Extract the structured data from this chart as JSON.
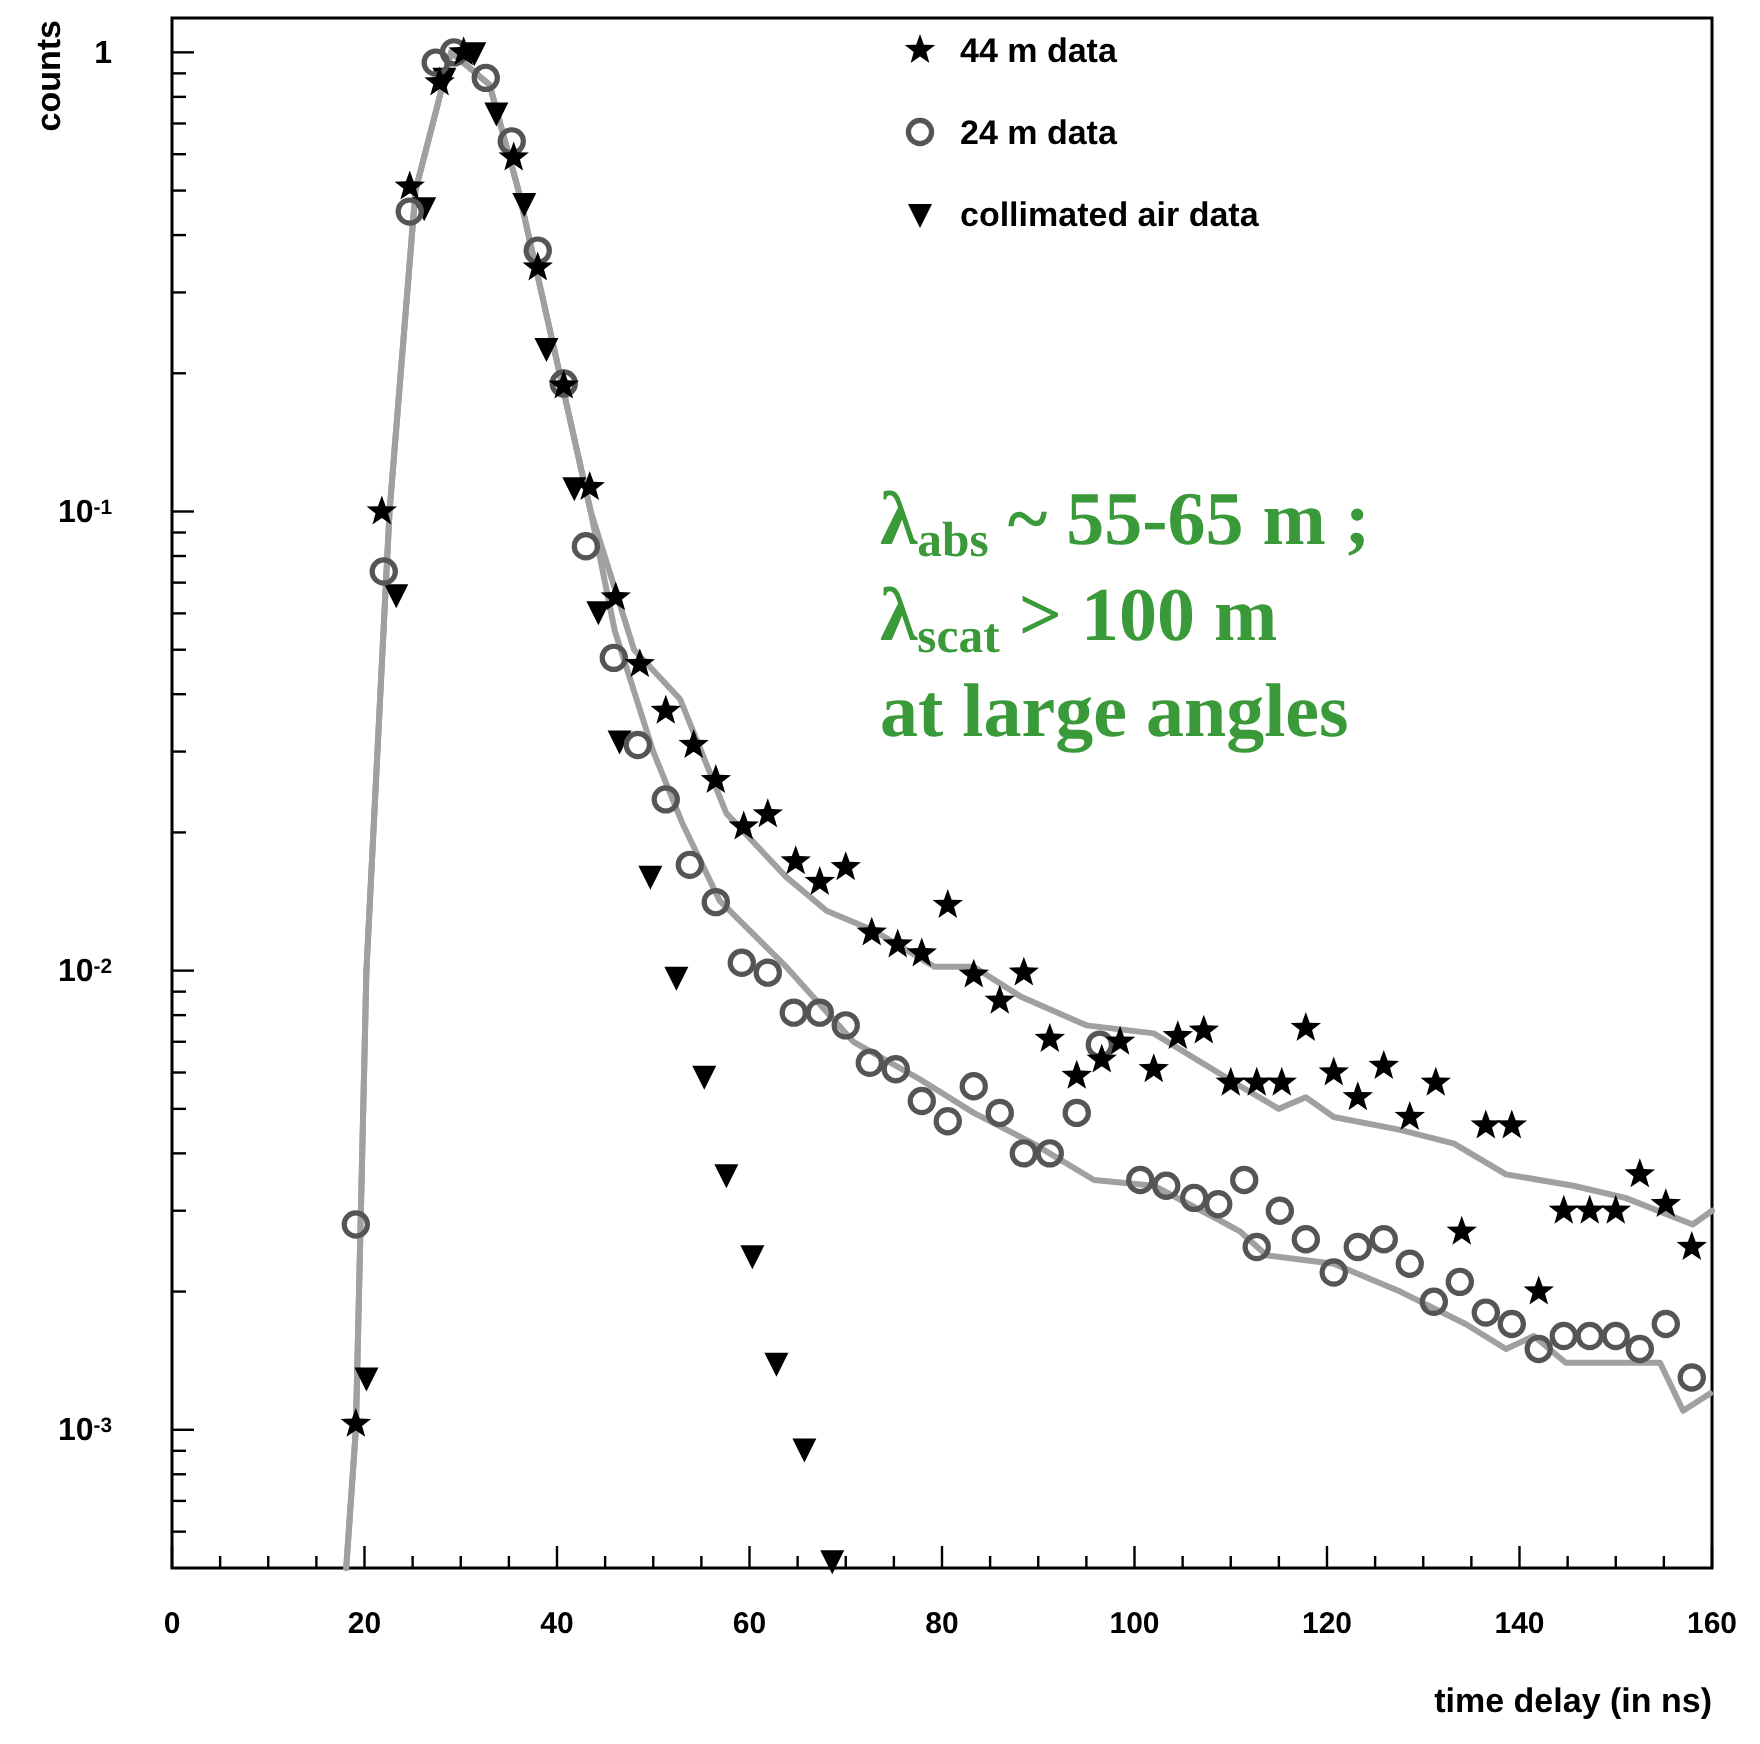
{
  "chart_data": {
    "type": "scatter",
    "xlabel": "time delay (in ns)",
    "ylabel": "counts",
    "log": "y",
    "grid": false,
    "legend": "top right",
    "xlim": [
      0,
      160
    ],
    "ylim": [
      0.0005,
      1.2
    ],
    "xticks": [
      0,
      {
        "value": 5,
        "label": null
      },
      {
        "value": 10,
        "label": null
      },
      {
        "value": 15,
        "label": null
      },
      20,
      {
        "value": 25,
        "label": null
      },
      {
        "value": 30,
        "label": null
      },
      {
        "value": 35,
        "label": null
      },
      40,
      {
        "value": 45,
        "label": null
      },
      {
        "value": 50,
        "label": null
      },
      {
        "value": 55,
        "label": null
      },
      60,
      {
        "value": 65,
        "label": null
      },
      {
        "value": 70,
        "label": null
      },
      {
        "value": 75,
        "label": null
      },
      80,
      {
        "value": 85,
        "label": null
      },
      {
        "value": 90,
        "label": null
      },
      {
        "value": 95,
        "label": null
      },
      100,
      {
        "value": 105,
        "label": null
      },
      {
        "value": 110,
        "label": null
      },
      {
        "value": 115,
        "label": null
      },
      120,
      {
        "value": 125,
        "label": null
      },
      {
        "value": 130,
        "label": null
      },
      {
        "value": 135,
        "label": null
      },
      140,
      {
        "value": 145,
        "label": null
      },
      {
        "value": 150,
        "label": null
      },
      {
        "value": 155,
        "label": null
      },
      160
    ],
    "yticks": [
      {
        "value": 0.0006,
        "label": null
      },
      {
        "value": 0.0007,
        "label": null
      },
      {
        "value": 0.0008,
        "label": null
      },
      {
        "value": 0.0009,
        "label": null
      },
      {
        "value": 0.001,
        "label": "10$^{-3}$"
      },
      {
        "value": 0.002,
        "label": null
      },
      {
        "value": 0.003,
        "label": null
      },
      {
        "value": 0.004,
        "label": null
      },
      {
        "value": 0.005,
        "label": null
      },
      {
        "value": 0.006,
        "label": null
      },
      {
        "value": 0.007,
        "label": null
      },
      {
        "value": 0.008,
        "label": null
      },
      {
        "value": 0.009,
        "label": null
      },
      {
        "value": 0.01,
        "label": "10$^{-2}$"
      },
      {
        "value": 0.02,
        "label": null
      },
      {
        "value": 0.03,
        "label": null
      },
      {
        "value": 0.04,
        "label": null
      },
      {
        "value": 0.05,
        "label": null
      },
      {
        "value": 0.06,
        "label": null
      },
      {
        "value": 0.07,
        "label": null
      },
      {
        "value": 0.08,
        "label": null
      },
      {
        "value": 0.09,
        "label": null
      },
      {
        "value": 0.1,
        "label": "10$^{-1}$"
      },
      {
        "value": 0.2,
        "label": null
      },
      {
        "value": 0.3,
        "label": null
      },
      {
        "value": 0.4,
        "label": null
      },
      {
        "value": 0.5,
        "label": null
      },
      {
        "value": 0.6,
        "label": null
      },
      {
        "value": 0.7,
        "label": null
      },
      {
        "value": 0.8,
        "label": null
      },
      {
        "value": 0.9,
        "label": null
      },
      1
    ],
    "annotations": [
      "λ$_{abs}$ ~ 55-65 m ;",
      "λ$_{scat}$ > 100 m",
      "at large angles"
    ],
    "series": [
      {
        "type": "line",
        "color": "#a0a0a0",
        "line_style": "solid",
        "marker": "none",
        "x": [
          18.1,
          19.1,
          20.2,
          22.6,
          25.3,
          29,
          33,
          36,
          43.5,
          48,
          52.8,
          57.6,
          63.8,
          68,
          73,
          79.2,
          83.3,
          88.1,
          95,
          102,
          111,
          115,
          117.8,
          120.7,
          127.6,
          133.2,
          138.6,
          145.6,
          151,
          158,
          160
        ],
        "values": [
          0.0005,
          0.001,
          0.01,
          0.1,
          0.5,
          1.0,
          0.85,
          0.5,
          0.1,
          0.05,
          0.039,
          0.022,
          0.016,
          0.0135,
          0.0122,
          0.0102,
          0.0102,
          0.0088,
          0.0076,
          0.0073,
          0.0056,
          0.005,
          0.0053,
          0.0048,
          0.0045,
          0.0042,
          0.0036,
          0.0034,
          0.0032,
          0.0028,
          0.003
        ]
      },
      {
        "type": "line",
        "color": "#a0a0a0",
        "line_style": "solid",
        "marker": "none",
        "x": [
          18.1,
          19.1,
          20.2,
          22.6,
          25.3,
          29,
          33,
          36,
          43.5,
          46,
          50,
          53,
          56.9,
          63.8,
          70.8,
          77.7,
          83.3,
          89.5,
          95.8,
          102,
          108.3,
          111,
          113.7,
          120.7,
          127.6,
          134.4,
          138.6,
          141.5,
          144.8,
          151.9,
          154.6,
          157,
          159.8
        ],
        "values": [
          0.0005,
          0.001,
          0.01,
          0.1,
          0.5,
          1.0,
          0.85,
          0.5,
          0.1,
          0.055,
          0.03,
          0.021,
          0.0142,
          0.0102,
          0.007,
          0.0058,
          0.0049,
          0.0042,
          0.0035,
          0.0034,
          0.0029,
          0.0027,
          0.0024,
          0.0023,
          0.002,
          0.0017,
          0.0015,
          0.0016,
          0.0014,
          0.0014,
          0.0014,
          0.0011,
          0.0012
        ]
      },
      {
        "name": "44 m data",
        "marker": "star",
        "color": "#000000",
        "x": [
          19.1,
          21.8,
          24.7,
          27.8,
          30.3,
          35.5,
          38,
          40.7,
          43.4,
          46.1,
          48.6,
          51.3,
          54.2,
          56.5,
          59.4,
          61.9,
          64.8,
          67.3,
          70,
          72.7,
          75.4,
          77.9,
          80.6,
          83.3,
          86,
          88.5,
          91.2,
          94,
          96.6,
          98.5,
          102,
          104.5,
          107.2,
          110,
          112.7,
          115.3,
          117.8,
          120.7,
          123.2,
          125.9,
          128.6,
          131.3,
          134,
          136.5,
          139.2,
          142,
          144.6,
          147.3,
          150,
          152.5,
          155.2,
          157.9
        ],
        "values": [
          0.00103,
          0.1,
          0.51,
          0.86,
          1.0,
          0.59,
          0.34,
          0.188,
          0.113,
          0.065,
          0.0465,
          0.0368,
          0.031,
          0.026,
          0.0206,
          0.0219,
          0.0173,
          0.0156,
          0.0168,
          0.0121,
          0.0114,
          0.0109,
          0.0139,
          0.0098,
          0.0086,
          0.0099,
          0.0071,
          0.0059,
          0.0064,
          0.007,
          0.0061,
          0.0072,
          0.0074,
          0.0057,
          0.0057,
          0.0057,
          0.0075,
          0.006,
          0.0053,
          0.0062,
          0.0048,
          0.0057,
          0.0027,
          0.0046,
          0.0046,
          0.002,
          0.003,
          0.003,
          0.003,
          0.0036,
          0.0031,
          0.0025
        ]
      },
      {
        "name": "24 m data",
        "marker": "circle",
        "color": "#555555",
        "x": [
          19.1,
          22,
          24.7,
          27.4,
          29.3,
          32.6,
          35.3,
          38,
          40.7,
          43,
          45.9,
          48.4,
          51.3,
          53.8,
          56.5,
          59.2,
          61.9,
          64.6,
          67.3,
          70,
          72.5,
          75.2,
          77.9,
          80.6,
          83.3,
          86,
          88.5,
          91.2,
          94,
          96.4,
          100.6,
          103.3,
          106.2,
          108.7,
          111.4,
          112.7,
          115.1,
          117.8,
          120.7,
          123.2,
          125.9,
          128.6,
          131.1,
          133.8,
          136.5,
          139.2,
          142,
          144.6,
          147.3,
          150,
          152.5,
          155.2,
          157.9
        ],
        "values": [
          0.0028,
          0.074,
          0.45,
          0.95,
          1.0,
          0.88,
          0.64,
          0.37,
          0.19,
          0.084,
          0.048,
          0.031,
          0.0236,
          0.017,
          0.0141,
          0.0104,
          0.0099,
          0.0081,
          0.0081,
          0.0076,
          0.0063,
          0.0061,
          0.0052,
          0.0047,
          0.0056,
          0.0049,
          0.004,
          0.004,
          0.0049,
          0.0069,
          0.0035,
          0.0034,
          0.0032,
          0.0031,
          0.0035,
          0.0025,
          0.003,
          0.0026,
          0.0022,
          0.0025,
          0.0026,
          0.0023,
          0.0019,
          0.0021,
          0.0018,
          0.0017,
          0.0015,
          0.0016,
          0.0016,
          0.0016,
          0.0015,
          0.0017,
          0.0013
        ]
      },
      {
        "name": "collimated air data",
        "marker": "triangle",
        "color": "#000000",
        "x": [
          20.2,
          23.3,
          26.2,
          28.3,
          31.4,
          33.7,
          36.6,
          38.9,
          41.8,
          44.3,
          46.5,
          49.7,
          52.4,
          55.3,
          57.6,
          60.3,
          62.8,
          65.7,
          68.6
        ],
        "values": [
          0.0013,
          0.066,
          0.46,
          0.88,
          1.0,
          0.74,
          0.47,
          0.227,
          0.113,
          0.0606,
          0.0317,
          0.0161,
          0.0097,
          0.0059,
          0.0036,
          0.0024,
          0.0014,
          0.00091,
          0.00052
        ]
      }
    ]
  }
}
